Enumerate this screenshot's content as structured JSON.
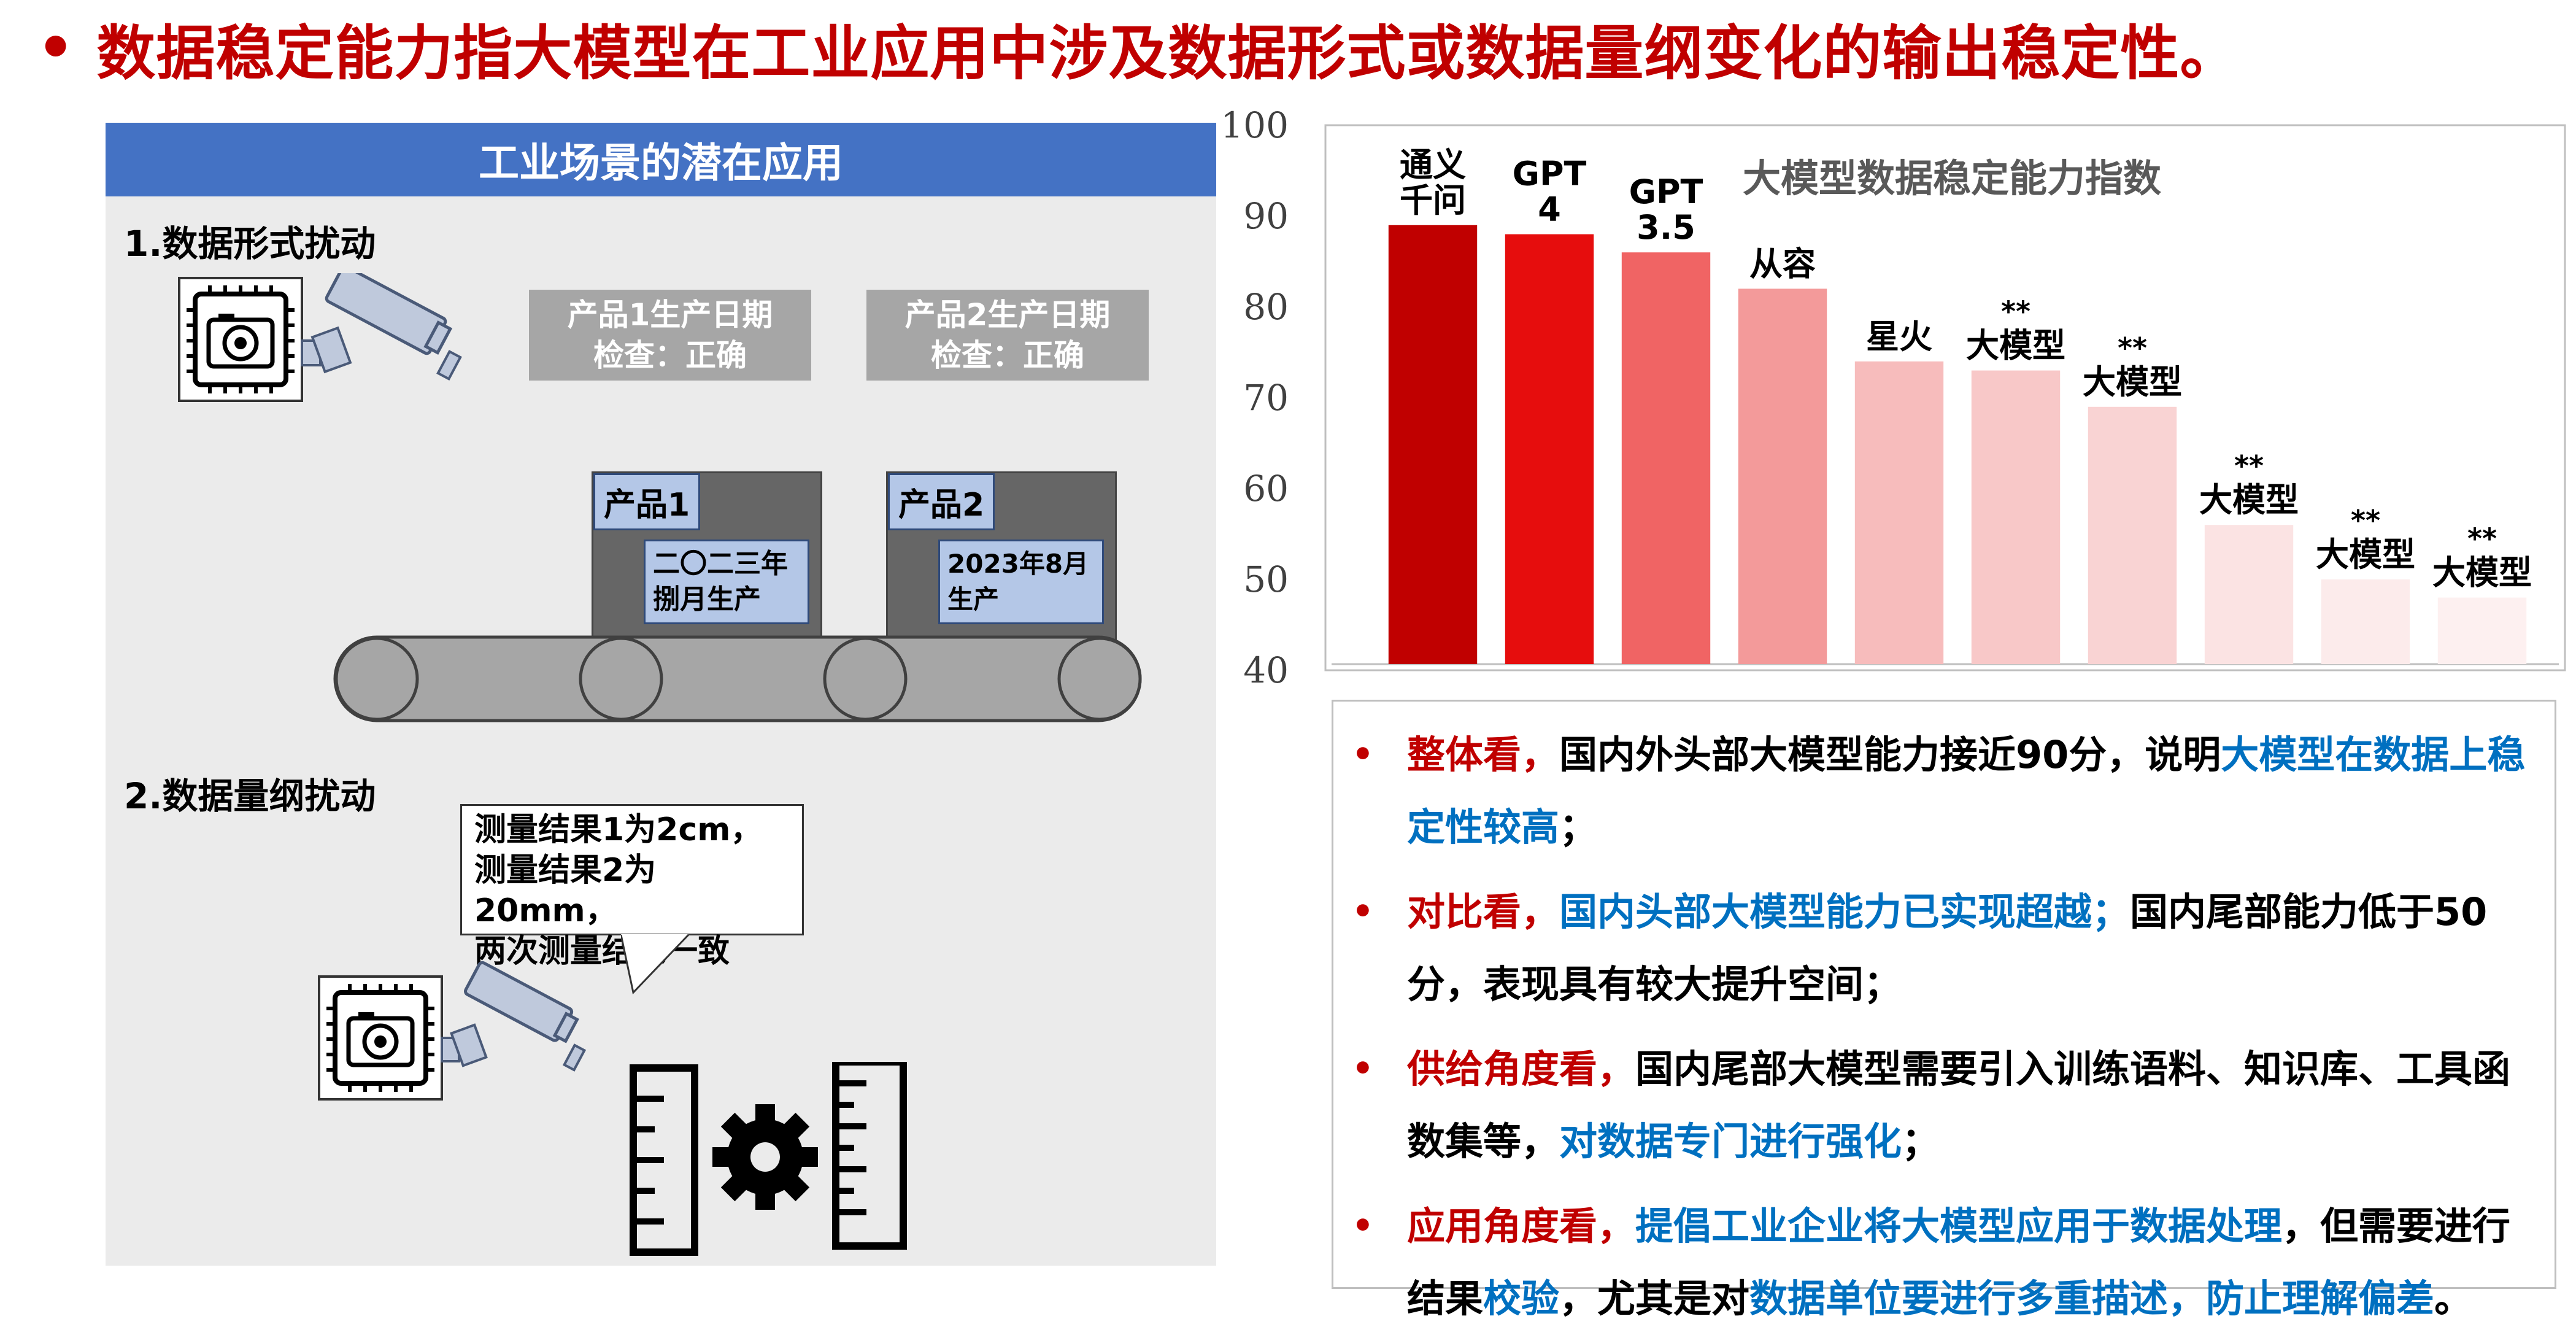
{
  "headline": {
    "bullet": "•",
    "text": "数据稳定能力指大模型在工业应用中涉及数据形式或数据量纲变化的输出稳定性。"
  },
  "left_panel": {
    "header": "工业场景的潜在应用",
    "section1_title": "1.数据形式扰动",
    "label1": [
      "产品1生产日期",
      "检查：正确"
    ],
    "label2": [
      "产品2生产日期",
      "检查：正确"
    ],
    "product1": {
      "tag": "产品1",
      "date": [
        "二〇二三年",
        "捌月生产"
      ]
    },
    "product2": {
      "tag": "产品2",
      "date": [
        "2023年8月",
        "生产"
      ]
    },
    "section2_title": "2.数据量纲扰动",
    "speech": [
      "测量结果1为2cm，",
      "测量结果2为20mm，",
      "两次测量结果一致"
    ]
  },
  "chart_data": {
    "type": "bar",
    "title": "大模型数据稳定能力指数",
    "categories": [
      "通义千问",
      "GPT 4",
      "GPT 3.5",
      "从容",
      "星火",
      "**大模型",
      "**大模型",
      "**大模型",
      "**大模型",
      "**大模型"
    ],
    "labels": [
      [
        "通义",
        "千问"
      ],
      [
        "GPT",
        "4"
      ],
      [
        "GPT",
        "3.5"
      ],
      [
        "从容"
      ],
      [
        "星火"
      ],
      [
        "**",
        "大模型"
      ],
      [
        "**",
        "大模型"
      ],
      [
        "**",
        "大模型"
      ],
      [
        "**",
        "大模型"
      ],
      [
        "**",
        "大模型"
      ]
    ],
    "values": [
      89,
      88,
      86,
      82,
      74,
      73,
      69,
      56,
      50,
      48
    ],
    "colors": [
      "#c00000",
      "#e60d0d",
      "#f06464",
      "#f39a9a",
      "#f7bcbc",
      "#f8c8c8",
      "#f9d3d3",
      "#fbe3e3",
      "#fcebeb",
      "#fdf0f0"
    ],
    "ylim": [
      40,
      100
    ],
    "yticks": [
      "40",
      "50",
      "60",
      "70",
      "80",
      "90",
      "100"
    ],
    "xlabel": "",
    "ylabel": ""
  },
  "textbox": [
    {
      "segments": [
        {
          "t": "整体看，",
          "c": "red"
        },
        {
          "t": "国内外头部大模型能力接近90分，说明",
          "c": ""
        },
        {
          "t": "大模型在数据上稳定性较高",
          "c": "blue"
        },
        {
          "t": "；",
          "c": ""
        }
      ]
    },
    {
      "segments": [
        {
          "t": "对比看，",
          "c": "red"
        },
        {
          "t": "国内头部大模型能力已实现超越；",
          "c": "blue"
        },
        {
          "t": "国内尾部能力低于50分，表现具有较大提升空间；",
          "c": ""
        }
      ]
    },
    {
      "segments": [
        {
          "t": "供给角度看，",
          "c": "red"
        },
        {
          "t": "国内尾部大模型需要引入训练语料、知识库、工具函数集等，",
          "c": ""
        },
        {
          "t": "对数据专门进行强化",
          "c": "blue"
        },
        {
          "t": "；",
          "c": ""
        }
      ]
    },
    {
      "segments": [
        {
          "t": "应用角度看，",
          "c": "red"
        },
        {
          "t": "提倡工业企业将大模型应用于数据处理",
          "c": "blue"
        },
        {
          "t": "，但需要进行结果",
          "c": ""
        },
        {
          "t": "校验",
          "c": "blue"
        },
        {
          "t": "，尤其是对",
          "c": ""
        },
        {
          "t": "数据单位要进行多重描述，防止理解偏差",
          "c": "blue"
        },
        {
          "t": "。",
          "c": ""
        }
      ]
    }
  ]
}
